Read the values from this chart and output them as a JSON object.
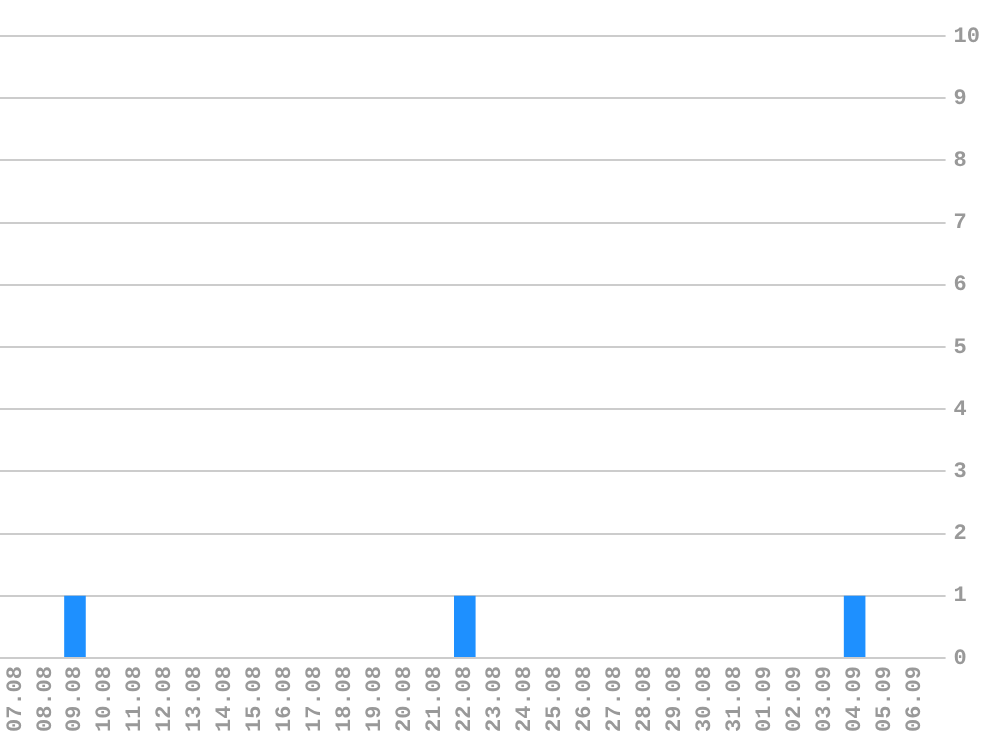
{
  "chart_data": {
    "type": "bar",
    "categories": [
      "07.08",
      "08.08",
      "09.08",
      "10.08",
      "11.08",
      "12.08",
      "13.08",
      "14.08",
      "15.08",
      "16.08",
      "17.08",
      "18.08",
      "19.08",
      "20.08",
      "21.08",
      "22.08",
      "23.08",
      "24.08",
      "25.08",
      "26.08",
      "27.08",
      "28.08",
      "29.08",
      "30.08",
      "31.08",
      "01.09",
      "02.09",
      "03.09",
      "04.09",
      "05.09",
      "06.09"
    ],
    "values": [
      0,
      0,
      1,
      0,
      0,
      0,
      0,
      0,
      0,
      0,
      0,
      0,
      0,
      0,
      0,
      1,
      0,
      0,
      0,
      0,
      0,
      0,
      0,
      0,
      0,
      0,
      0,
      0,
      1,
      0,
      0
    ],
    "color": "#1e90ff",
    "ylim": [
      0,
      10
    ],
    "yticks": [
      0,
      1,
      2,
      3,
      4,
      5,
      6,
      7,
      8,
      9,
      10
    ],
    "grid": "y",
    "legend": false
  }
}
